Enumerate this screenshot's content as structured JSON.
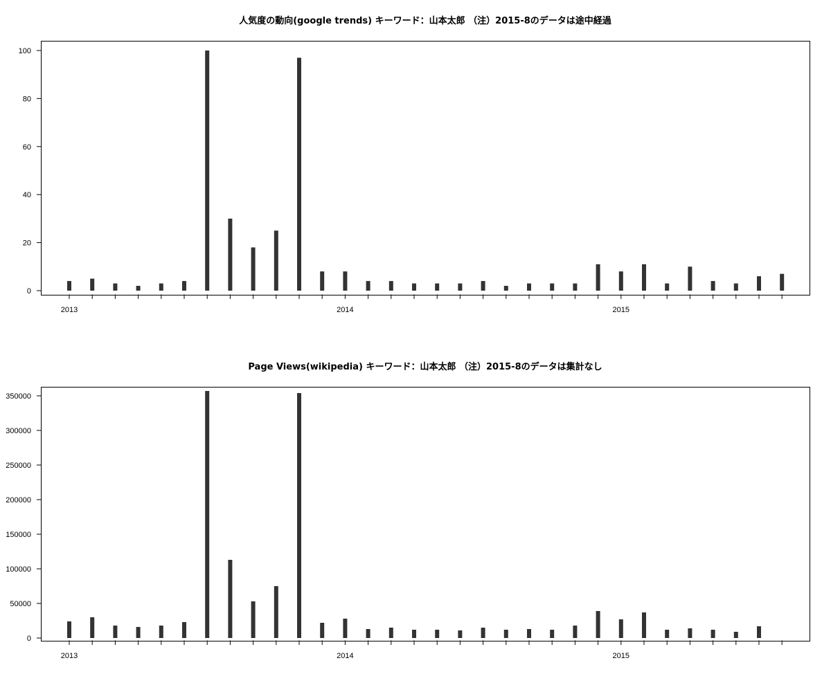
{
  "chart_data": [
    {
      "type": "bar",
      "title": "人気度の動向(google trends) キーワード：山本太郎 （注）2015-8のデータは途中経過",
      "xlabel": "",
      "ylabel": "",
      "ylim": [
        0,
        100
      ],
      "yticks": [
        0,
        20,
        40,
        60,
        80,
        100
      ],
      "xticks": [
        "2013",
        "2014",
        "2015"
      ],
      "categories": [
        "2013-01",
        "2013-02",
        "2013-03",
        "2013-04",
        "2013-05",
        "2013-06",
        "2013-07",
        "2013-08",
        "2013-09",
        "2013-10",
        "2013-11",
        "2013-12",
        "2014-01",
        "2014-02",
        "2014-03",
        "2014-04",
        "2014-05",
        "2014-06",
        "2014-07",
        "2014-08",
        "2014-09",
        "2014-10",
        "2014-11",
        "2014-12",
        "2015-01",
        "2015-02",
        "2015-03",
        "2015-04",
        "2015-05",
        "2015-06",
        "2015-07",
        "2015-08"
      ],
      "values": [
        4,
        5,
        3,
        2,
        3,
        4,
        100,
        30,
        18,
        25,
        97,
        8,
        8,
        4,
        4,
        3,
        3,
        3,
        4,
        2,
        3,
        3,
        3,
        11,
        8,
        11,
        3,
        10,
        4,
        3,
        6,
        7
      ],
      "bar_color": "#333333"
    },
    {
      "type": "bar",
      "title": "Page Views(wikipedia) キーワード：山本太郎 （注）2015-8のデータは集計なし",
      "xlabel": "",
      "ylabel": "",
      "ylim": [
        0,
        350000
      ],
      "yticks": [
        0,
        50000,
        100000,
        150000,
        200000,
        250000,
        300000,
        350000
      ],
      "xticks": [
        "2013",
        "2014",
        "2015"
      ],
      "categories": [
        "2013-01",
        "2013-02",
        "2013-03",
        "2013-04",
        "2013-05",
        "2013-06",
        "2013-07",
        "2013-08",
        "2013-09",
        "2013-10",
        "2013-11",
        "2013-12",
        "2014-01",
        "2014-02",
        "2014-03",
        "2014-04",
        "2014-05",
        "2014-06",
        "2014-07",
        "2014-08",
        "2014-09",
        "2014-10",
        "2014-11",
        "2014-12",
        "2015-01",
        "2015-02",
        "2015-03",
        "2015-04",
        "2015-05",
        "2015-06",
        "2015-07",
        "2015-08"
      ],
      "values": [
        24000,
        30000,
        18000,
        16000,
        18000,
        23000,
        357000,
        113000,
        53000,
        75000,
        354000,
        22000,
        28000,
        13000,
        15000,
        12000,
        12000,
        11000,
        15000,
        12000,
        13000,
        12000,
        18000,
        39000,
        27000,
        37000,
        12000,
        14000,
        12000,
        9000,
        17000,
        0
      ],
      "bar_color": "#333333"
    }
  ]
}
